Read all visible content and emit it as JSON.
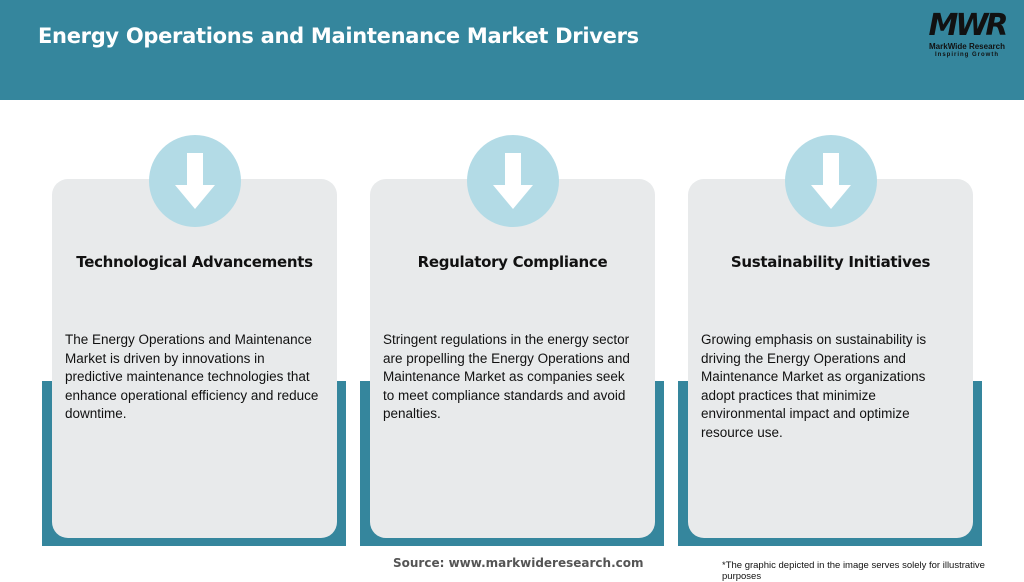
{
  "header": {
    "title": "Energy Operations and Maintenance Market Drivers"
  },
  "logo": {
    "mark": "MWR",
    "name": "MarkWide Research",
    "tagline": "Inspiring Growth"
  },
  "colors": {
    "header": "#35869d",
    "card": "#e8eaeb",
    "circle": "#b3dbe6"
  },
  "cards": [
    {
      "icon": "arrow-down-icon",
      "title": "Technological Advancements",
      "text": "The Energy Operations and Maintenance Market is driven by innovations in predictive maintenance technologies that enhance operational efficiency and reduce downtime."
    },
    {
      "icon": "arrow-down-icon",
      "title": "Regulatory Compliance",
      "text": "Stringent regulations in the energy sector are propelling the Energy Operations and Maintenance Market as companies seek to meet compliance standards and avoid penalties."
    },
    {
      "icon": "arrow-down-icon",
      "title": "Sustainability Initiatives",
      "text": "Growing emphasis on sustainability is driving the Energy Operations and Maintenance Market as organizations adopt practices that minimize environmental impact and optimize resource use."
    }
  ],
  "footer": {
    "source": "Source: www.markwideresearch.com",
    "note": "*The graphic depicted in the image serves solely for illustrative purposes"
  }
}
